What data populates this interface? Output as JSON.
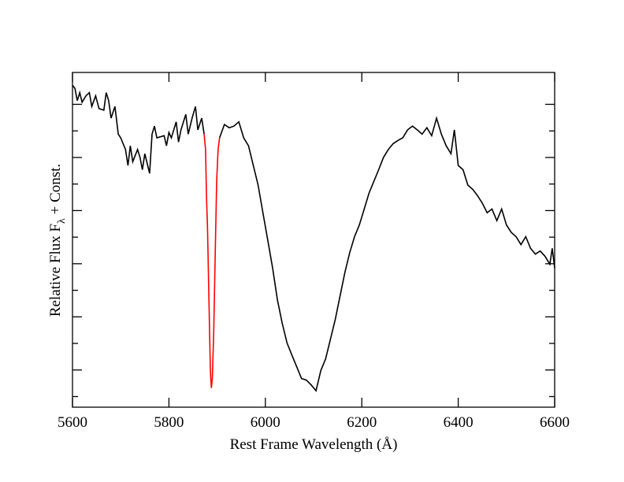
{
  "chart_data": {
    "type": "line",
    "xlabel": "Rest Frame Wavelength (Å)",
    "ylabel": [
      "Relative Flux F",
      "λ",
      " + Const."
    ],
    "xlim": [
      5600,
      6600
    ],
    "xticks": [
      5600,
      5800,
      6000,
      6200,
      6400,
      6600
    ],
    "ylim": [
      0.3,
      6.6
    ],
    "yticks": [
      0.5,
      1,
      1.5,
      2,
      2.5,
      3,
      3.5,
      4,
      4.5,
      5,
      5.5,
      6
    ],
    "series": [
      {
        "color": "#000000",
        "x": [
          5600,
          5605,
          5610,
          5615,
          5620,
          5628,
          5635,
          5640,
          5648,
          5655,
          5665,
          5670,
          5675,
          5680,
          5688,
          5695,
          5700,
          5710,
          5715,
          5720,
          5725,
          5735,
          5740,
          5745,
          5750,
          5760,
          5765,
          5770,
          5775,
          5790,
          5795,
          5800,
          5805,
          5815,
          5820,
          5825,
          5835,
          5840,
          5848,
          5855,
          5860,
          5868,
          5873,
          null,
          5905,
          5915,
          5925,
          5935,
          5945,
          5955,
          5965,
          5975,
          5985,
          5995,
          6005,
          6015,
          6025,
          6035,
          6045,
          6055,
          6065,
          6075,
          6085,
          6095,
          6105,
          6115,
          6125,
          6135,
          6145,
          6155,
          6165,
          6175,
          6185,
          6195,
          6205,
          6215,
          6225,
          6235,
          6245,
          6255,
          6265,
          6275,
          6285,
          6295,
          6305,
          6315,
          6325,
          6335,
          6345,
          6355,
          6365,
          6375,
          6385,
          6392,
          6400,
          6410,
          6420,
          6430,
          6440,
          6450,
          6460,
          6470,
          6480,
          6490,
          6500,
          6510,
          6520,
          6530,
          6540,
          6550,
          6560,
          6570,
          6580,
          6590,
          6595,
          6600
        ],
        "values": [
          6.36,
          6.3,
          6.07,
          6.22,
          6.04,
          6.16,
          6.22,
          5.96,
          6.16,
          5.92,
          5.89,
          6.22,
          6.07,
          5.74,
          5.96,
          5.44,
          5.37,
          5.15,
          4.85,
          5.22,
          4.92,
          5.15,
          5.0,
          4.77,
          5.07,
          4.7,
          5.44,
          5.59,
          5.37,
          5.41,
          5.22,
          5.47,
          5.37,
          5.67,
          5.29,
          5.52,
          5.81,
          5.44,
          5.74,
          5.96,
          5.52,
          5.74,
          5.44,
          null,
          5.37,
          5.62,
          5.56,
          5.59,
          5.67,
          5.37,
          5.22,
          4.85,
          4.48,
          3.96,
          3.44,
          2.92,
          2.32,
          1.88,
          1.51,
          1.28,
          1.06,
          0.84,
          0.81,
          0.72,
          0.61,
          0.99,
          1.21,
          1.58,
          1.95,
          2.4,
          2.84,
          3.21,
          3.51,
          3.73,
          4.03,
          4.33,
          4.55,
          4.77,
          5.0,
          5.15,
          5.26,
          5.32,
          5.37,
          5.52,
          5.59,
          5.52,
          5.44,
          5.56,
          5.41,
          5.74,
          5.44,
          5.22,
          5.07,
          5.52,
          4.85,
          4.77,
          4.48,
          4.4,
          4.28,
          4.14,
          3.96,
          4.03,
          3.81,
          4.03,
          3.73,
          3.59,
          3.51,
          3.36,
          3.51,
          3.29,
          3.18,
          3.24,
          3.14,
          2.99,
          3.29,
          2.92
        ]
      },
      {
        "color": "#ff0000",
        "x": [
          5873,
          5876,
          5878,
          5880,
          5883,
          5886,
          5888,
          5890,
          5893,
          5896,
          5899,
          5902,
          5905
        ],
        "values": [
          5.44,
          5.15,
          4.25,
          3.66,
          2.32,
          0.99,
          0.66,
          0.84,
          1.73,
          3.21,
          4.55,
          5.15,
          5.37
        ]
      }
    ]
  }
}
